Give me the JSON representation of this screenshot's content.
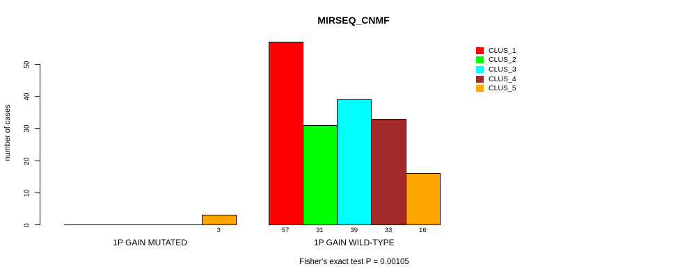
{
  "title": "MIRSEQ_CNMF",
  "footer": "Fisher's exact test P = 0.00105",
  "chart_data": {
    "type": "bar",
    "grouped": true,
    "title": "MIRSEQ_CNMF",
    "xlabel": "",
    "ylabel": "number of cases",
    "yticks": [
      0,
      10,
      20,
      30,
      40,
      50
    ],
    "ylim": [
      0,
      57
    ],
    "grid": false,
    "legend_position": "top-right",
    "background": "#ffffff",
    "bar_border_color": "#000000",
    "series": [
      {
        "name": "CLUS_1",
        "color": "#ff0000"
      },
      {
        "name": "CLUS_2",
        "color": "#00ff00"
      },
      {
        "name": "CLUS_3",
        "color": "#00ffff"
      },
      {
        "name": "CLUS_4",
        "color": "#a52a2a"
      },
      {
        "name": "CLUS_5",
        "color": "#ffa500"
      }
    ],
    "groups": [
      {
        "label": "1P GAIN MUTATED",
        "values": [
          0,
          0,
          0,
          0,
          3
        ],
        "bar_labels": [
          "",
          "",
          "",
          "",
          "3"
        ]
      },
      {
        "label": "1P GAIN WILD-TYPE",
        "values": [
          57,
          31,
          39,
          33,
          16
        ],
        "bar_labels": [
          "57",
          "31",
          "39",
          "33",
          "16"
        ]
      }
    ],
    "annotation": "Fisher's exact test P = 0.00105"
  }
}
